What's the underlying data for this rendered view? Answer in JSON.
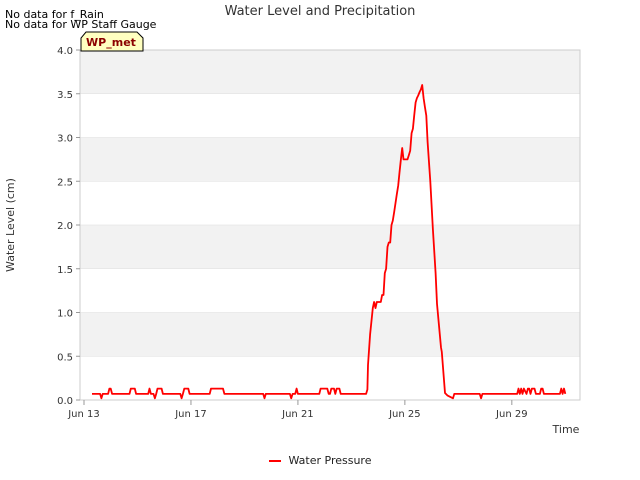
{
  "no_data_notes": [
    "No data for f_Rain",
    "No data for WP Staff Gauge"
  ],
  "station_badge": "WP_met",
  "colors": {
    "series": "#ff0000",
    "band": "#f2f2f2",
    "grid": "#dddddd"
  },
  "chart_data": {
    "type": "line",
    "title": "Water Level and Precipitation",
    "xlabel": "Time",
    "ylabel": "Water Level (cm)",
    "x_ticks": [
      "Jun 13",
      "Jun 17",
      "Jun 21",
      "Jun 25",
      "Jun 29"
    ],
    "x_tick_days": [
      0,
      4,
      8,
      12,
      16
    ],
    "y_ticks": [
      "0.0",
      "0.5",
      "1.0",
      "1.5",
      "2.0",
      "2.5",
      "3.0",
      "3.5",
      "4.0"
    ],
    "xlim_days": [
      0,
      18
    ],
    "ylim": [
      0,
      4.0
    ],
    "x_unit": "days since Jun 13",
    "legend_position": "bottom-center",
    "series": [
      {
        "name": "Water Pressure",
        "points": [
          [
            0.3,
            0.07
          ],
          [
            0.6,
            0.07
          ],
          [
            0.65,
            0.02
          ],
          [
            0.7,
            0.07
          ],
          [
            0.9,
            0.07
          ],
          [
            0.95,
            0.13
          ],
          [
            1.0,
            0.13
          ],
          [
            1.05,
            0.07
          ],
          [
            1.7,
            0.07
          ],
          [
            1.75,
            0.13
          ],
          [
            1.9,
            0.13
          ],
          [
            1.95,
            0.07
          ],
          [
            2.4,
            0.07
          ],
          [
            2.45,
            0.13
          ],
          [
            2.5,
            0.07
          ],
          [
            2.6,
            0.07
          ],
          [
            2.65,
            0.02
          ],
          [
            2.7,
            0.07
          ],
          [
            2.75,
            0.13
          ],
          [
            2.9,
            0.13
          ],
          [
            2.95,
            0.07
          ],
          [
            3.6,
            0.07
          ],
          [
            3.65,
            0.02
          ],
          [
            3.7,
            0.07
          ],
          [
            3.75,
            0.13
          ],
          [
            3.9,
            0.13
          ],
          [
            3.95,
            0.07
          ],
          [
            4.7,
            0.07
          ],
          [
            4.75,
            0.13
          ],
          [
            5.2,
            0.13
          ],
          [
            5.25,
            0.07
          ],
          [
            6.7,
            0.07
          ],
          [
            6.75,
            0.02
          ],
          [
            6.8,
            0.07
          ],
          [
            7.7,
            0.07
          ],
          [
            7.75,
            0.02
          ],
          [
            7.8,
            0.07
          ],
          [
            7.9,
            0.07
          ],
          [
            7.95,
            0.13
          ],
          [
            8.0,
            0.07
          ],
          [
            8.8,
            0.07
          ],
          [
            8.85,
            0.13
          ],
          [
            9.1,
            0.13
          ],
          [
            9.15,
            0.07
          ],
          [
            9.2,
            0.07
          ],
          [
            9.25,
            0.13
          ],
          [
            9.35,
            0.13
          ],
          [
            9.4,
            0.07
          ],
          [
            9.45,
            0.13
          ],
          [
            9.55,
            0.13
          ],
          [
            9.6,
            0.07
          ],
          [
            10.55,
            0.07
          ],
          [
            10.6,
            0.12
          ],
          [
            10.62,
            0.4
          ],
          [
            10.7,
            0.75
          ],
          [
            10.8,
            1.05
          ],
          [
            10.85,
            1.12
          ],
          [
            10.9,
            1.05
          ],
          [
            10.95,
            1.12
          ],
          [
            11.1,
            1.12
          ],
          [
            11.15,
            1.2
          ],
          [
            11.2,
            1.2
          ],
          [
            11.25,
            1.45
          ],
          [
            11.3,
            1.5
          ],
          [
            11.35,
            1.75
          ],
          [
            11.4,
            1.8
          ],
          [
            11.45,
            1.8
          ],
          [
            11.5,
            2.0
          ],
          [
            11.55,
            2.05
          ],
          [
            11.6,
            2.15
          ],
          [
            11.65,
            2.25
          ],
          [
            11.7,
            2.35
          ],
          [
            11.75,
            2.45
          ],
          [
            11.8,
            2.6
          ],
          [
            11.85,
            2.75
          ],
          [
            11.9,
            2.88
          ],
          [
            11.95,
            2.75
          ],
          [
            12.1,
            2.75
          ],
          [
            12.15,
            2.8
          ],
          [
            12.2,
            2.85
          ],
          [
            12.25,
            3.05
          ],
          [
            12.3,
            3.1
          ],
          [
            12.35,
            3.25
          ],
          [
            12.4,
            3.4
          ],
          [
            12.45,
            3.45
          ],
          [
            12.5,
            3.48
          ],
          [
            12.55,
            3.52
          ],
          [
            12.6,
            3.55
          ],
          [
            12.65,
            3.6
          ],
          [
            12.7,
            3.45
          ],
          [
            12.75,
            3.35
          ],
          [
            12.8,
            3.25
          ],
          [
            12.85,
            2.95
          ],
          [
            12.95,
            2.5
          ],
          [
            13.05,
            1.95
          ],
          [
            13.15,
            1.45
          ],
          [
            13.2,
            1.1
          ],
          [
            13.35,
            0.6
          ],
          [
            13.38,
            0.55
          ],
          [
            13.5,
            0.08
          ],
          [
            13.6,
            0.05
          ],
          [
            13.8,
            0.02
          ],
          [
            13.85,
            0.07
          ],
          [
            14.8,
            0.07
          ],
          [
            14.85,
            0.02
          ],
          [
            14.9,
            0.07
          ],
          [
            16.2,
            0.07
          ],
          [
            16.25,
            0.13
          ],
          [
            16.3,
            0.07
          ],
          [
            16.35,
            0.13
          ],
          [
            16.4,
            0.07
          ],
          [
            16.45,
            0.13
          ],
          [
            16.55,
            0.07
          ],
          [
            16.6,
            0.13
          ],
          [
            16.65,
            0.13
          ],
          [
            16.7,
            0.07
          ],
          [
            16.75,
            0.13
          ],
          [
            16.85,
            0.13
          ],
          [
            16.9,
            0.07
          ],
          [
            17.05,
            0.07
          ],
          [
            17.1,
            0.13
          ],
          [
            17.15,
            0.13
          ],
          [
            17.2,
            0.07
          ],
          [
            17.8,
            0.07
          ],
          [
            17.85,
            0.13
          ],
          [
            17.9,
            0.07
          ],
          [
            17.95,
            0.13
          ],
          [
            18.0,
            0.07
          ]
        ]
      }
    ]
  }
}
